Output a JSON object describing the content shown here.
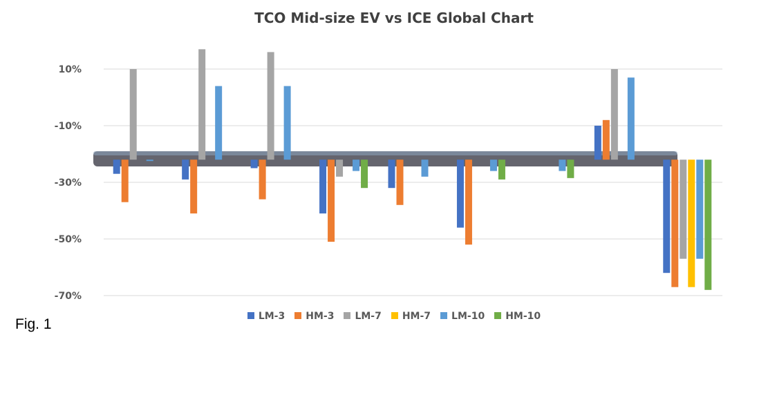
{
  "caption": "Fig. 1",
  "chart_data": {
    "type": "bar",
    "title": "TCO Mid-size EV vs ICE Global Chart",
    "xlabel": "",
    "ylabel": "",
    "ylim": [
      -72,
      18
    ],
    "yticks": [
      10,
      -10,
      -30,
      -50,
      -70
    ],
    "ytick_labels": [
      "10%",
      "-10%",
      "-30%",
      "-50%",
      "-70%"
    ],
    "grid": true,
    "legend_position": "bottom",
    "categories": [
      "",
      "",
      "",
      "",
      "",
      "",
      "",
      "",
      ""
    ],
    "colors": {
      "LM-3": "#4472C4",
      "HM-3": "#ED7D31",
      "LM-7": "#A5A5A5",
      "HM-7": "#FFC000",
      "LM-10": "#5B9BD5",
      "HM-10": "#70AD47"
    },
    "series": [
      {
        "name": "LM-3",
        "values": [
          -27,
          -29,
          -25,
          -41,
          -32,
          -46,
          null,
          -10,
          -62
        ]
      },
      {
        "name": "HM-3",
        "values": [
          -37,
          -41,
          -36,
          -51,
          -38,
          -52,
          null,
          -8,
          -67
        ]
      },
      {
        "name": "LM-7",
        "values": [
          10,
          17,
          16,
          -28,
          null,
          null,
          null,
          10,
          -57
        ]
      },
      {
        "name": "HM-7",
        "values": [
          null,
          null,
          null,
          null,
          null,
          null,
          null,
          null,
          -67
        ]
      },
      {
        "name": "LM-10",
        "values": [
          -22,
          4,
          4,
          -26,
          -28,
          -26,
          -26,
          7,
          -57
        ]
      },
      {
        "name": "HM-10",
        "values": [
          null,
          null,
          null,
          -32,
          null,
          -29,
          -28.5,
          null,
          -68
        ]
      }
    ]
  },
  "legend": [
    {
      "label": "LM-3",
      "color": "#4472C4"
    },
    {
      "label": "HM-3",
      "color": "#ED7D31"
    },
    {
      "label": "LM-7",
      "color": "#A5A5A5"
    },
    {
      "label": "HM-7",
      "color": "#FFC000"
    },
    {
      "label": "LM-10",
      "color": "#5B9BD5"
    },
    {
      "label": "HM-10",
      "color": "#70AD47"
    }
  ],
  "axis_bar_color": "#4a4a55",
  "gridline_color": "#d9d9d9"
}
